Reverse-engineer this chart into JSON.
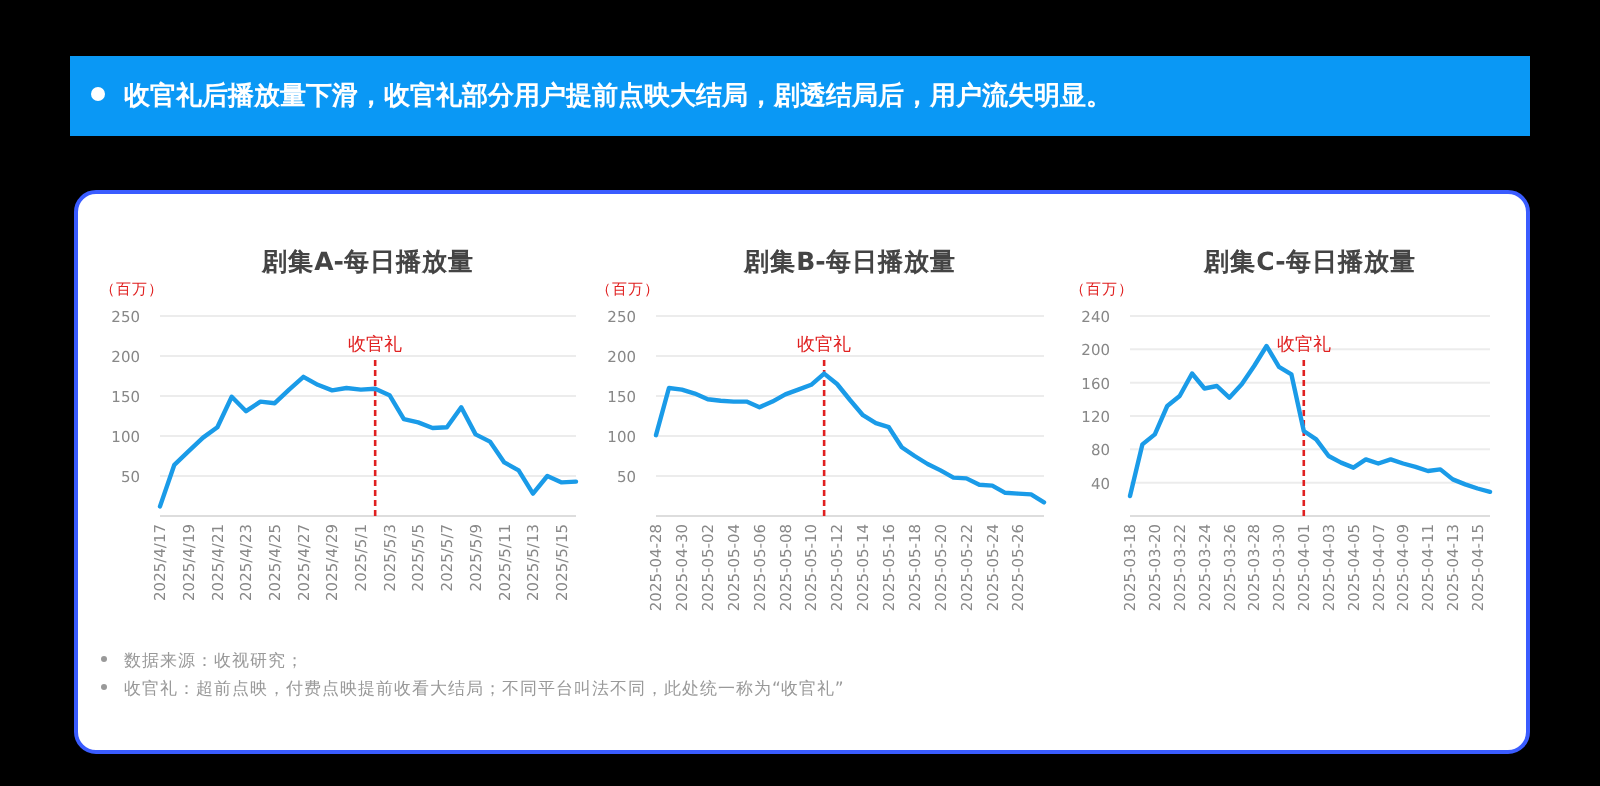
{
  "chart_data": [
    {
      "type": "other",
      "title": "收官礼后播放量下滑，收官礼部分用户提前点映大结局，剧透结局后，用户流失明显。",
      "annotations": [
        "数据来源：收视研究；",
        "收官礼：超前点映，付费点映提前收看大结局；不同平台叫法不同，此处统一称为“收官礼”"
      ]
    },
    {
      "type": "line",
      "title": "剧集A-每日播放量",
      "ylabel": "（百万）",
      "grid": "y",
      "x": [
        "2025-04-17",
        "2025-04-18",
        "2025-04-19",
        "2025-04-20",
        "2025-04-21",
        "2025-04-22",
        "2025-04-23",
        "2025-04-24",
        "2025-04-25",
        "2025-04-26",
        "2025-04-27",
        "2025-04-28",
        "2025-04-29",
        "2025-04-30",
        "2025-05-01",
        "2025-05-02",
        "2025-05-03",
        "2025-05-04",
        "2025-05-05",
        "2025-05-06",
        "2025-05-07",
        "2025-05-08",
        "2025-05-09",
        "2025-05-10",
        "2025-05-11",
        "2025-05-12",
        "2025-05-13",
        "2025-05-14",
        "2025-05-15",
        "2025-05-16"
      ],
      "series": [
        {
          "color": "#1a9be8",
          "values": [
            12,
            64,
            81,
            98,
            111,
            149,
            131,
            143,
            141,
            158,
            174,
            164,
            157,
            160,
            158,
            159,
            151,
            121,
            117,
            110,
            111,
            136,
            102,
            93,
            67,
            57,
            28,
            50,
            42,
            43
          ]
        }
      ],
      "xlim": [
        "2025-04-17",
        "2025-05-16"
      ],
      "xticks": [
        {
          "value": "2025-04-17",
          "label": "2025/4/17"
        },
        {
          "value": "2025-04-19",
          "label": "2025/4/19"
        },
        {
          "value": "2025-04-21",
          "label": "2025/4/21"
        },
        {
          "value": "2025-04-23",
          "label": "2025/4/23"
        },
        {
          "value": "2025-04-25",
          "label": "2025/4/25"
        },
        {
          "value": "2025-04-27",
          "label": "2025/4/27"
        },
        {
          "value": "2025-04-29",
          "label": "2025/4/29"
        },
        {
          "value": "2025-05-01",
          "label": "2025/5/1"
        },
        {
          "value": "2025-05-03",
          "label": "2025/5/3"
        },
        {
          "value": "2025-05-05",
          "label": "2025/5/5"
        },
        {
          "value": "2025-05-07",
          "label": "2025/5/7"
        },
        {
          "value": "2025-05-09",
          "label": "2025/5/9"
        },
        {
          "value": "2025-05-11",
          "label": "2025/5/11"
        },
        {
          "value": "2025-05-13",
          "label": "2025/5/13"
        },
        {
          "value": "2025-05-15",
          "label": "2025/5/15"
        }
      ],
      "ylim": [
        0,
        250
      ],
      "yticks": [
        50,
        100,
        150,
        200,
        250
      ],
      "ref_lines": [
        {
          "axis": "x",
          "value": "2025-05-02",
          "label": "收官礼",
          "color": "#e02020",
          "line_style": "dashed"
        }
      ]
    },
    {
      "type": "line",
      "title": "剧集B-每日播放量",
      "ylabel": "（百万）",
      "grid": "y",
      "x": [
        "2025-04-28",
        "2025-04-29",
        "2025-04-30",
        "2025-05-01",
        "2025-05-02",
        "2025-05-03",
        "2025-05-04",
        "2025-05-05",
        "2025-05-06",
        "2025-05-07",
        "2025-05-08",
        "2025-05-09",
        "2025-05-10",
        "2025-05-11",
        "2025-05-12",
        "2025-05-13",
        "2025-05-14",
        "2025-05-15",
        "2025-05-16",
        "2025-05-17",
        "2025-05-18",
        "2025-05-19",
        "2025-05-20",
        "2025-05-21",
        "2025-05-22",
        "2025-05-23",
        "2025-05-24",
        "2025-05-25",
        "2025-05-26",
        "2025-05-27",
        "2025-05-28"
      ],
      "series": [
        {
          "color": "#1a9be8",
          "values": [
            101,
            160,
            158,
            153,
            146,
            144,
            143,
            143,
            136,
            143,
            152,
            158,
            164,
            178,
            165,
            145,
            126,
            116,
            111,
            86,
            75,
            65,
            57,
            48,
            47,
            39,
            38,
            29,
            28,
            27,
            17
          ]
        }
      ],
      "xlim": [
        "2025-04-28",
        "2025-05-28"
      ],
      "xticks": [
        "2025-04-28",
        "2025-04-30",
        "2025-05-02",
        "2025-05-04",
        "2025-05-06",
        "2025-05-08",
        "2025-05-10",
        "2025-05-12",
        "2025-05-14",
        "2025-05-16",
        "2025-05-18",
        "2025-05-20",
        "2025-05-22",
        "2025-05-24",
        "2025-05-26"
      ],
      "ylim": [
        0,
        250
      ],
      "yticks": [
        50,
        100,
        150,
        200,
        250
      ],
      "ref_lines": [
        {
          "axis": "x",
          "value": "2025-05-11",
          "label": "收官礼",
          "color": "#e02020",
          "line_style": "dashed"
        }
      ]
    },
    {
      "type": "line",
      "title": "剧集C-每日播放量",
      "ylabel": "（百万）",
      "grid": "y",
      "x": [
        "2025-03-18",
        "2025-03-19",
        "2025-03-20",
        "2025-03-21",
        "2025-03-22",
        "2025-03-23",
        "2025-03-24",
        "2025-03-25",
        "2025-03-26",
        "2025-03-27",
        "2025-03-28",
        "2025-03-29",
        "2025-03-30",
        "2025-03-31",
        "2025-04-01",
        "2025-04-02",
        "2025-04-03",
        "2025-04-04",
        "2025-04-05",
        "2025-04-06",
        "2025-04-07",
        "2025-04-08",
        "2025-04-09",
        "2025-04-10",
        "2025-04-11",
        "2025-04-12",
        "2025-04-13",
        "2025-04-14",
        "2025-04-15",
        "2025-04-16"
      ],
      "series": [
        {
          "color": "#1a9be8",
          "values": [
            24,
            86,
            98,
            132,
            144,
            171,
            153,
            156,
            142,
            158,
            180,
            204,
            179,
            170,
            102,
            92,
            72,
            64,
            58,
            68,
            63,
            68,
            63,
            59,
            54,
            56,
            44,
            38,
            33,
            29
          ]
        }
      ],
      "xlim": [
        "2025-03-18",
        "2025-04-16"
      ],
      "xticks": [
        "2025-03-18",
        "2025-03-20",
        "2025-03-22",
        "2025-03-24",
        "2025-03-26",
        "2025-03-28",
        "2025-03-30",
        "2025-04-01",
        "2025-04-03",
        "2025-04-05",
        "2025-04-07",
        "2025-04-09",
        "2025-04-11",
        "2025-04-13",
        "2025-04-15"
      ],
      "ylim": [
        0,
        240
      ],
      "yticks": [
        40,
        80,
        120,
        160,
        200,
        240
      ],
      "ref_lines": [
        {
          "axis": "x",
          "value": "2025-04-01",
          "label": "收官礼",
          "color": "#e02020",
          "line_style": "dashed"
        }
      ]
    }
  ]
}
